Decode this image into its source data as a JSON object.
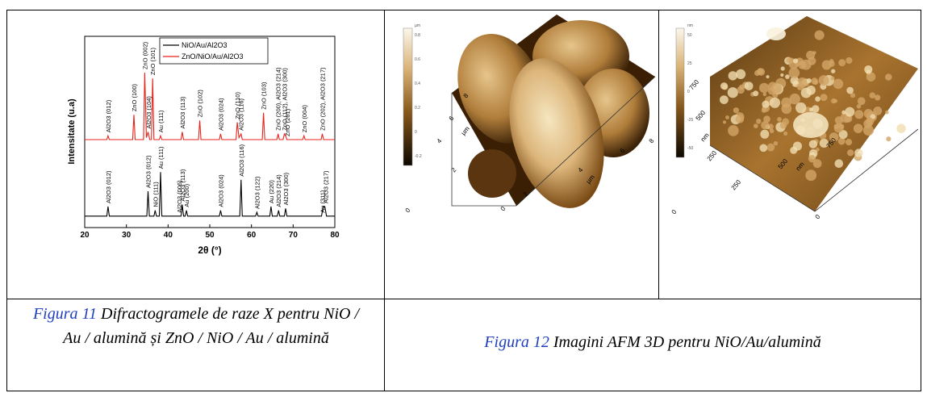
{
  "chart_data": {
    "type": "line",
    "xlabel": "2θ (°)",
    "ylabel": "Intensitate (u.a)",
    "xlim": [
      20,
      80
    ],
    "xticks": [
      20,
      30,
      40,
      50,
      60,
      70,
      80
    ],
    "ylim": [
      0,
      100
    ],
    "legend": "top",
    "series": [
      {
        "name": "NiO/Au/Al2O3",
        "color": "#000000",
        "x": [
          20,
          25.3,
          25.6,
          25.9,
          34.9,
          35.2,
          35.5,
          36.6,
          36.9,
          37.2,
          37.9,
          38.2,
          38.5,
          43.1,
          43.4,
          43.7,
          44.1,
          44.4,
          44.7,
          52.3,
          52.6,
          52.9,
          57.2,
          57.5,
          57.8,
          61.0,
          61.3,
          61.6,
          64.4,
          64.7,
          65.0,
          66.2,
          66.5,
          66.8,
          67.9,
          68.2,
          68.5,
          76.8,
          77.2,
          77.6,
          78.0,
          80
        ],
        "values": [
          6,
          6,
          11,
          6,
          6,
          19,
          6,
          6,
          9,
          6,
          6,
          29,
          6,
          6,
          12,
          6,
          6,
          9,
          6,
          6,
          9,
          6,
          6,
          25,
          6,
          6,
          8,
          6,
          6,
          11,
          6,
          6,
          9,
          6,
          6,
          10,
          6,
          6,
          11,
          11,
          6,
          6
        ],
        "annotations": [
          {
            "text": "Al2O3 (012)",
            "x": 25.6
          },
          {
            "text": "Al2O3 (012)",
            "x": 35.2
          },
          {
            "text": "NiO (111)",
            "x": 36.9
          },
          {
            "text": "Au (111)",
            "x": 38.2
          },
          {
            "text": "Al2O3 (006)",
            "x": 42.6
          },
          {
            "text": "Al2O3 (113)",
            "x": 43.4
          },
          {
            "text": "Au (200)",
            "x": 44.4
          },
          {
            "text": "Al2O3 (024)",
            "x": 52.6
          },
          {
            "text": "Al2O3 (116)",
            "x": 57.5
          },
          {
            "text": "Al2O3 (122)",
            "x": 61.3
          },
          {
            "text": "Au (220)",
            "x": 64.7
          },
          {
            "text": "Al2O3 (214)",
            "x": 66.5
          },
          {
            "text": "Al2O3 (300)",
            "x": 68.2
          },
          {
            "text": "Au (311)",
            "x": 77.0
          },
          {
            "text": "Al2O3 (217)",
            "x": 77.8
          }
        ]
      },
      {
        "name": "ZnO/NiO/Au/Al2O3",
        "color": "#e8231c",
        "x": [
          20,
          25.3,
          25.6,
          25.9,
          31.5,
          31.8,
          32.1,
          34.1,
          34.4,
          34.8,
          35.2,
          35.6,
          36.0,
          36.3,
          36.6,
          37.9,
          38.2,
          38.5,
          43.1,
          43.4,
          43.7,
          47.3,
          47.6,
          47.9,
          52.3,
          52.6,
          52.9,
          56.3,
          56.6,
          57.0,
          57.5,
          57.8,
          62.6,
          62.9,
          63.2,
          66.1,
          66.4,
          66.7,
          67.6,
          67.9,
          68.2,
          68.5,
          72.3,
          72.6,
          72.9,
          76.7,
          77.0,
          77.3,
          80
        ],
        "values": [
          46,
          46,
          48,
          46,
          46,
          59,
          46,
          46,
          81,
          47,
          50,
          46,
          46,
          78,
          46,
          46,
          48,
          46,
          46,
          50,
          46,
          46,
          56,
          46,
          46,
          49,
          46,
          46,
          55,
          47,
          49,
          46,
          46,
          60,
          46,
          46,
          49,
          46,
          46,
          49,
          48,
          46,
          46,
          48,
          46,
          46,
          49,
          46,
          46
        ],
        "annotations": [
          {
            "text": "Al2O3 (012)",
            "x": 25.6
          },
          {
            "text": "ZnO (100)",
            "x": 31.8
          },
          {
            "text": "ZnO (002)",
            "x": 34.4
          },
          {
            "text": "Al2O3 (104)",
            "x": 35.3
          },
          {
            "text": "ZnO (101)",
            "x": 36.3
          },
          {
            "text": "Au (111)",
            "x": 38.2
          },
          {
            "text": "Al2O3 (113)",
            "x": 43.4
          },
          {
            "text": "ZnO (102)",
            "x": 47.6
          },
          {
            "text": "Al2O3 (024)",
            "x": 52.6
          },
          {
            "text": "ZnO (110)",
            "x": 56.6
          },
          {
            "text": "Al2O3 (116)",
            "x": 57.5
          },
          {
            "text": "ZnO (103)",
            "x": 62.9
          },
          {
            "text": "ZnO (200), Al2O3 (214)",
            "x": 66.4
          },
          {
            "text": "ZnO (112), Al2O3 (300)",
            "x": 67.9
          },
          {
            "text": "ZnO (201)",
            "x": 68.6
          },
          {
            "text": "ZnO (004)",
            "x": 72.6
          },
          {
            "text": "ZnO (202), Al2O3 (217)",
            "x": 77.0
          }
        ]
      }
    ]
  },
  "afm": {
    "left": {
      "colorbar_unit": "µm",
      "colorbar_labels": [
        "0.8",
        "0.6",
        "0.4",
        "0.2",
        "0",
        "-0.2"
      ],
      "axis_labels": [
        "0",
        "2",
        "4",
        "6",
        "8",
        "µm",
        "0",
        "2",
        "4",
        "6",
        "8",
        "µm"
      ]
    },
    "right": {
      "colorbar_unit": "nm",
      "colorbar_labels": [
        "50",
        "25",
        "0",
        "-25",
        "-50"
      ],
      "axis_labels": [
        "0",
        "250",
        "500",
        "750",
        "nm",
        "0",
        "250",
        "500",
        "750",
        "nm"
      ]
    }
  },
  "captions": {
    "figure11": {
      "link": "Figura 11",
      "text": "Difractogramele de raze X pentru NiO / Au / alumină și ZnO / NiO / Au / alumină"
    },
    "figure12": {
      "link": "Figura 12",
      "text": "Imagini AFM 3D pentru NiO/Au/alumină"
    }
  }
}
